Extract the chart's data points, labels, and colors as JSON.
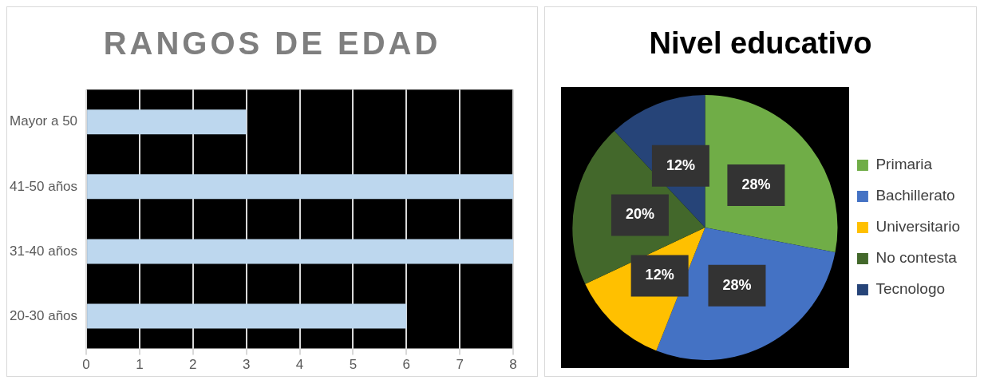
{
  "chart_data": [
    {
      "type": "bar",
      "title": "RANGOS DE EDAD",
      "orientation": "horizontal",
      "categories": [
        "Mayor a 50",
        "41-50 años",
        "31-40 años",
        "20-30 años"
      ],
      "values": [
        3,
        8,
        8,
        6
      ],
      "color": "#bdd7ee",
      "xlim": [
        0,
        8
      ],
      "xticks": [
        0,
        1,
        2,
        3,
        4,
        5,
        6,
        7,
        8
      ],
      "grid": "x",
      "legend": false
    },
    {
      "type": "pie",
      "title": "Nivel educativo",
      "categories": [
        "Primaria",
        "Bachillerato",
        "Universitario",
        "No contesta",
        "Tecnologo"
      ],
      "values": [
        28,
        28,
        12,
        20,
        12
      ],
      "colors": [
        "#70ad47",
        "#4472c4",
        "#ffc000",
        "#43682b",
        "#264478"
      ],
      "value_labels": [
        "28%",
        "28%",
        "12%",
        "20%",
        "12%"
      ],
      "legend": "right"
    }
  ]
}
